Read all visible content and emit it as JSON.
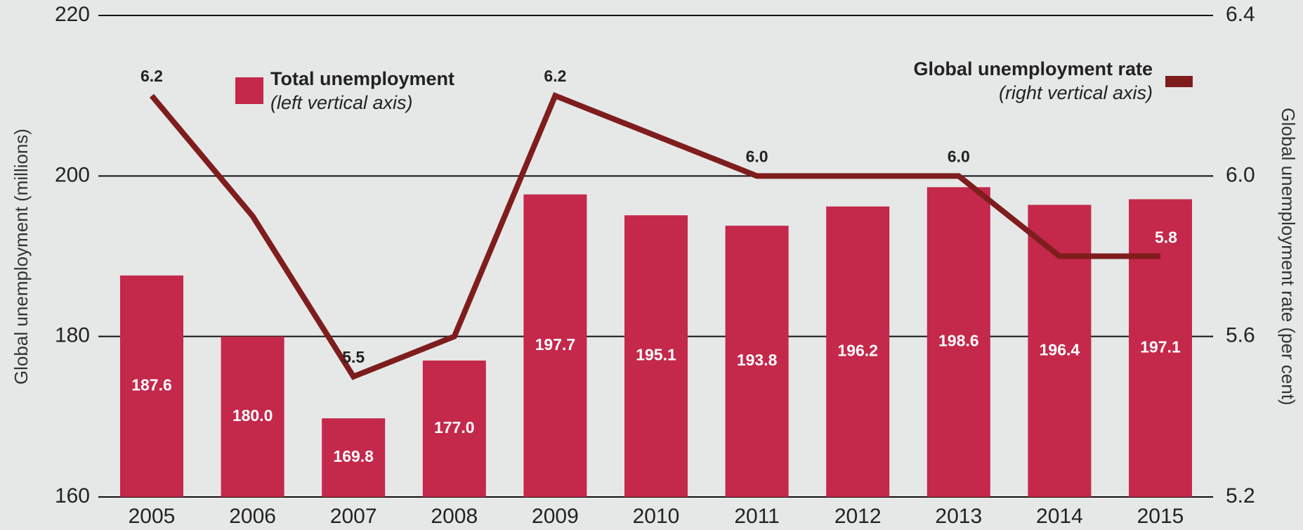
{
  "chart_data": {
    "type": "bar_line",
    "categories": [
      "2005",
      "2006",
      "2007",
      "2008",
      "2009",
      "2010",
      "2011",
      "2012",
      "2013",
      "2014",
      "2015"
    ],
    "series": [
      {
        "name": "Total unemployment",
        "type": "bar",
        "color": "#c4284a",
        "axis": "y",
        "values": [
          187.6,
          180.0,
          169.8,
          177.0,
          197.7,
          195.1,
          193.8,
          196.2,
          198.6,
          196.4,
          197.1
        ],
        "value_labels": [
          "187.6",
          "180.0",
          "169.8",
          "177.0",
          "197.7",
          "195.1",
          "193.8",
          "196.2",
          "198.6",
          "196.4",
          "197.1"
        ]
      },
      {
        "name": "Global unemployment rate",
        "type": "line",
        "color": "#7f1d1d",
        "axis": "y2",
        "values": [
          6.2,
          5.9,
          5.5,
          5.6,
          6.2,
          6.1,
          6.0,
          6.0,
          6.0,
          5.8,
          5.8
        ],
        "value_labels": [
          "6.2",
          null,
          "5.5",
          null,
          "6.2",
          null,
          "6.0",
          null,
          "6.0",
          null,
          "5.8"
        ]
      }
    ],
    "legend_notes": [
      "(left vertical axis)",
      "(right vertical axis)"
    ],
    "ylabel": "Global unemployment (millions)",
    "y2label": "Global unemployment rate (per cent)",
    "ylim": [
      160,
      220
    ],
    "yticks": [
      160,
      180,
      200,
      220
    ],
    "y2lim": [
      5.2,
      6.4
    ],
    "y2ticks": [
      5.2,
      5.6,
      {
        "value": 6,
        "label": "6.0"
      },
      6.4
    ],
    "grid": true
  }
}
